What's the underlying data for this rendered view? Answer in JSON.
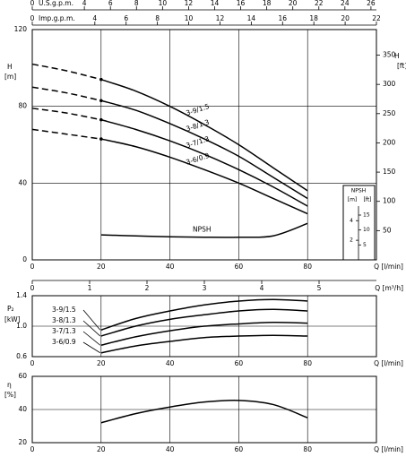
{
  "chart_data": [
    {
      "type": "line",
      "x_label": "Q [l/min]",
      "y_label": "H",
      "y_unit": "[m]",
      "y2_label": "H",
      "y2_unit": "[ft]",
      "x": [
        0,
        10,
        20,
        30,
        40,
        50,
        60,
        70,
        80
      ],
      "xlim": [
        0,
        100
      ],
      "xticks": [
        0,
        20,
        40,
        60,
        80
      ],
      "ylim": [
        0,
        120
      ],
      "yticks": [
        0,
        40,
        80,
        120
      ],
      "y2lim": [
        0,
        393.7
      ],
      "y2ticks": [
        50,
        100,
        150,
        200,
        250,
        300,
        350
      ],
      "grid": true,
      "dashed_until": 20,
      "us_gpm": {
        "label": "U.S.g.p.m.",
        "lim": [
          0,
          26.42
        ],
        "ticks": [
          0,
          4,
          6,
          8,
          10,
          12,
          14,
          16,
          18,
          20,
          22,
          24,
          26
        ]
      },
      "imp_gpm": {
        "label": "Imp.g.p.m.",
        "lim": [
          0,
          22
        ],
        "ticks": [
          0,
          4,
          6,
          8,
          10,
          12,
          14,
          16,
          18,
          20,
          22
        ]
      },
      "m3h": {
        "label": "Q [m³/h]",
        "lim": [
          0,
          6
        ],
        "ticks": [
          0,
          1,
          2,
          3,
          4,
          5
        ]
      },
      "npsh_scale": {
        "title": "NPSH",
        "m_label": "[m]",
        "ft_label": "[ft]",
        "ylim": [
          0,
          7.5
        ],
        "ylim_ft": [
          0,
          24.6
        ],
        "m_ticks": [
          2,
          4
        ],
        "ft_ticks": [
          5,
          10,
          15
        ]
      },
      "series": [
        {
          "name": "3-9/1.5",
          "color": "#000000",
          "values": [
            102,
            98.5,
            94,
            88,
            80,
            70.5,
            60,
            48,
            36
          ]
        },
        {
          "name": "3-8/1.3",
          "color": "#000000",
          "values": [
            90,
            87,
            83,
            78,
            71,
            63,
            54,
            43,
            32
          ]
        },
        {
          "name": "3-7/1.3",
          "color": "#000000",
          "values": [
            79,
            76.5,
            73,
            68,
            62,
            55,
            47,
            38,
            28
          ]
        },
        {
          "name": "3-6/0.9",
          "color": "#000000",
          "values": [
            68,
            65.5,
            63,
            59,
            53.5,
            47,
            40,
            32,
            24
          ]
        },
        {
          "name": "NPSH",
          "color": "#000000",
          "values": [
            null,
            null,
            13,
            12.5,
            12,
            11.8,
            11.8,
            12.5,
            19
          ]
        }
      ]
    },
    {
      "type": "line",
      "x_label": "Q [l/min]",
      "y_label": "P₂",
      "y_unit": "[kW]",
      "x": [
        20,
        30,
        40,
        50,
        60,
        70,
        80
      ],
      "xlim": [
        0,
        100
      ],
      "xticks": [
        0,
        20,
        40,
        60,
        80
      ],
      "ylim": [
        0.6,
        1.4
      ],
      "yticks": [
        0.6,
        {
          "value": 1,
          "label": "1.0"
        },
        1.4
      ],
      "grid": true,
      "series": [
        {
          "name": "3-9/1.5",
          "color": "#000000",
          "values": [
            0.95,
            1.1,
            1.2,
            1.28,
            1.33,
            1.35,
            1.33
          ]
        },
        {
          "name": "3-8/1.3",
          "color": "#000000",
          "values": [
            0.87,
            1.0,
            1.09,
            1.15,
            1.2,
            1.22,
            1.2
          ]
        },
        {
          "name": "3-7/1.3",
          "color": "#000000",
          "values": [
            0.75,
            0.86,
            0.94,
            1.0,
            1.03,
            1.05,
            1.04
          ]
        },
        {
          "name": "3-6/0.9",
          "color": "#000000",
          "values": [
            0.65,
            0.74,
            0.8,
            0.85,
            0.87,
            0.88,
            0.87
          ]
        }
      ]
    },
    {
      "type": "line",
      "x_label": "Q [l/min]",
      "y_label": "η",
      "y_unit": "[%]",
      "x": [
        20,
        30,
        40,
        50,
        60,
        70,
        80
      ],
      "xlim": [
        0,
        100
      ],
      "xticks": [
        0,
        20,
        40,
        60,
        80
      ],
      "ylim": [
        20,
        60
      ],
      "yticks": [
        20,
        40,
        60
      ],
      "grid": true,
      "series": [
        {
          "color": "#000000",
          "values": [
            32,
            37.5,
            41.5,
            44.5,
            45.5,
            43,
            35
          ]
        }
      ]
    }
  ]
}
